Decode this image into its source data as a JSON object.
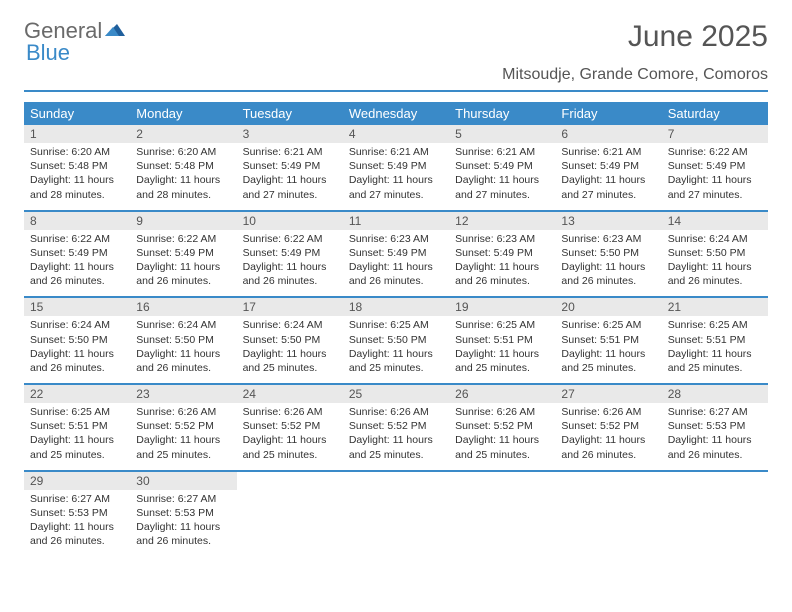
{
  "logo": {
    "text_general": "General",
    "text_blue": "Blue"
  },
  "title": "June 2025",
  "subtitle": "Mitsoudje, Grande Comore, Comoros",
  "colors": {
    "accent": "#3a8ac8",
    "header_text": "#ffffff",
    "daynum_bg": "#e9e9e9",
    "body_text": "#333333",
    "title_text": "#555555"
  },
  "day_names": [
    "Sunday",
    "Monday",
    "Tuesday",
    "Wednesday",
    "Thursday",
    "Friday",
    "Saturday"
  ],
  "layout": {
    "columns": 7,
    "rows": 5,
    "cell_font_size_pt": 8,
    "header_font_size_pt": 10
  },
  "days": [
    {
      "n": 1,
      "sunrise": "6:20 AM",
      "sunset": "5:48 PM",
      "daylight": "11 hours and 28 minutes."
    },
    {
      "n": 2,
      "sunrise": "6:20 AM",
      "sunset": "5:48 PM",
      "daylight": "11 hours and 28 minutes."
    },
    {
      "n": 3,
      "sunrise": "6:21 AM",
      "sunset": "5:49 PM",
      "daylight": "11 hours and 27 minutes."
    },
    {
      "n": 4,
      "sunrise": "6:21 AM",
      "sunset": "5:49 PM",
      "daylight": "11 hours and 27 minutes."
    },
    {
      "n": 5,
      "sunrise": "6:21 AM",
      "sunset": "5:49 PM",
      "daylight": "11 hours and 27 minutes."
    },
    {
      "n": 6,
      "sunrise": "6:21 AM",
      "sunset": "5:49 PM",
      "daylight": "11 hours and 27 minutes."
    },
    {
      "n": 7,
      "sunrise": "6:22 AM",
      "sunset": "5:49 PM",
      "daylight": "11 hours and 27 minutes."
    },
    {
      "n": 8,
      "sunrise": "6:22 AM",
      "sunset": "5:49 PM",
      "daylight": "11 hours and 26 minutes."
    },
    {
      "n": 9,
      "sunrise": "6:22 AM",
      "sunset": "5:49 PM",
      "daylight": "11 hours and 26 minutes."
    },
    {
      "n": 10,
      "sunrise": "6:22 AM",
      "sunset": "5:49 PM",
      "daylight": "11 hours and 26 minutes."
    },
    {
      "n": 11,
      "sunrise": "6:23 AM",
      "sunset": "5:49 PM",
      "daylight": "11 hours and 26 minutes."
    },
    {
      "n": 12,
      "sunrise": "6:23 AM",
      "sunset": "5:49 PM",
      "daylight": "11 hours and 26 minutes."
    },
    {
      "n": 13,
      "sunrise": "6:23 AM",
      "sunset": "5:50 PM",
      "daylight": "11 hours and 26 minutes."
    },
    {
      "n": 14,
      "sunrise": "6:24 AM",
      "sunset": "5:50 PM",
      "daylight": "11 hours and 26 minutes."
    },
    {
      "n": 15,
      "sunrise": "6:24 AM",
      "sunset": "5:50 PM",
      "daylight": "11 hours and 26 minutes."
    },
    {
      "n": 16,
      "sunrise": "6:24 AM",
      "sunset": "5:50 PM",
      "daylight": "11 hours and 26 minutes."
    },
    {
      "n": 17,
      "sunrise": "6:24 AM",
      "sunset": "5:50 PM",
      "daylight": "11 hours and 25 minutes."
    },
    {
      "n": 18,
      "sunrise": "6:25 AM",
      "sunset": "5:50 PM",
      "daylight": "11 hours and 25 minutes."
    },
    {
      "n": 19,
      "sunrise": "6:25 AM",
      "sunset": "5:51 PM",
      "daylight": "11 hours and 25 minutes."
    },
    {
      "n": 20,
      "sunrise": "6:25 AM",
      "sunset": "5:51 PM",
      "daylight": "11 hours and 25 minutes."
    },
    {
      "n": 21,
      "sunrise": "6:25 AM",
      "sunset": "5:51 PM",
      "daylight": "11 hours and 25 minutes."
    },
    {
      "n": 22,
      "sunrise": "6:25 AM",
      "sunset": "5:51 PM",
      "daylight": "11 hours and 25 minutes."
    },
    {
      "n": 23,
      "sunrise": "6:26 AM",
      "sunset": "5:52 PM",
      "daylight": "11 hours and 25 minutes."
    },
    {
      "n": 24,
      "sunrise": "6:26 AM",
      "sunset": "5:52 PM",
      "daylight": "11 hours and 25 minutes."
    },
    {
      "n": 25,
      "sunrise": "6:26 AM",
      "sunset": "5:52 PM",
      "daylight": "11 hours and 25 minutes."
    },
    {
      "n": 26,
      "sunrise": "6:26 AM",
      "sunset": "5:52 PM",
      "daylight": "11 hours and 25 minutes."
    },
    {
      "n": 27,
      "sunrise": "6:26 AM",
      "sunset": "5:52 PM",
      "daylight": "11 hours and 26 minutes."
    },
    {
      "n": 28,
      "sunrise": "6:27 AM",
      "sunset": "5:53 PM",
      "daylight": "11 hours and 26 minutes."
    },
    {
      "n": 29,
      "sunrise": "6:27 AM",
      "sunset": "5:53 PM",
      "daylight": "11 hours and 26 minutes."
    },
    {
      "n": 30,
      "sunrise": "6:27 AM",
      "sunset": "5:53 PM",
      "daylight": "11 hours and 26 minutes."
    }
  ],
  "labels": {
    "sunrise": "Sunrise: ",
    "sunset": "Sunset: ",
    "daylight": "Daylight: "
  }
}
